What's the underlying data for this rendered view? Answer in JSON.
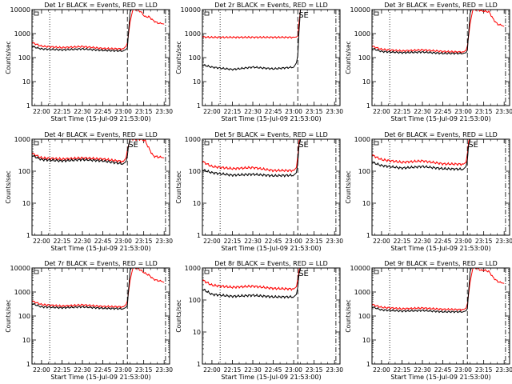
{
  "colors": {
    "events": "#000000",
    "lld": "#ff0000",
    "axes": "#000000",
    "background": "#ffffff"
  },
  "shared": {
    "xlabel": "Start Time (15-Jul-09 21:53:00)",
    "ylabel": "Counts/sec",
    "x_tick_labels": [
      "22:00",
      "22:15",
      "22:30",
      "22:45",
      "23:00",
      "23:15",
      "23:30"
    ],
    "y_tick_labels": [
      "1",
      "10",
      "100",
      "1000",
      "10000"
    ],
    "se_label": "SE",
    "y_scale": "log"
  },
  "chart_data": [
    {
      "type": "line",
      "title": "Det 1r BLACK = Events, RED = LLD",
      "xlabel": "Start Time (15-Jul-09 21:53:00)",
      "ylabel": "Counts/sec",
      "xlim": [
        "21:53",
        "23:34"
      ],
      "ylim": [
        1,
        10000
      ],
      "y_scale": "log",
      "x_tick_labels": [
        "22:00",
        "22:15",
        "22:30",
        "22:45",
        "23:00",
        "23:15",
        "23:30"
      ],
      "y_tick_labels": [
        "1",
        "10",
        "100",
        "1000",
        "10000"
      ],
      "vlines": [
        {
          "time": "22:06",
          "style": "dotted"
        },
        {
          "time": "23:03",
          "style": "dashed"
        },
        {
          "time": "23:31",
          "style": "dashdot"
        }
      ],
      "series": [
        {
          "x": [
            "21:53",
            "22:00",
            "22:15",
            "22:30",
            "22:45",
            "23:00",
            "23:02",
            "23:03",
            "23:04",
            "23:05",
            "23:06",
            "23:07"
          ],
          "y": [
            290,
            230,
            210,
            230,
            200,
            190,
            220,
            250,
            1500,
            8000,
            10000,
            10000
          ]
        },
        {
          "x": [
            "21:53",
            "22:00",
            "22:15",
            "22:30",
            "22:45",
            "23:00",
            "23:02",
            "23:03",
            "23:05",
            "23:07",
            "23:10",
            "23:13",
            "23:16",
            "23:19",
            "23:22",
            "23:25",
            "23:28",
            "23:30"
          ],
          "y": [
            420,
            300,
            260,
            290,
            240,
            230,
            300,
            400,
            3000,
            10000,
            10000,
            8000,
            5000,
            5000,
            3500,
            2800,
            2600,
            2500
          ]
        }
      ]
    },
    {
      "type": "line",
      "title": "Det 2r BLACK = Events, RED = LLD",
      "xlabel": "Start Time (15-Jul-09 21:53:00)",
      "ylabel": "Counts/sec",
      "xlim": [
        "21:53",
        "23:34"
      ],
      "ylim": [
        1,
        10000
      ],
      "y_scale": "log",
      "x_tick_labels": [
        "22:00",
        "22:15",
        "22:30",
        "22:45",
        "23:00",
        "23:15",
        "23:30"
      ],
      "y_tick_labels": [
        "1",
        "10",
        "100",
        "1000",
        "10000"
      ],
      "se_label": "SE",
      "vlines": [
        {
          "time": "22:06",
          "style": "dotted"
        },
        {
          "time": "23:03",
          "style": "dashed"
        },
        {
          "time": "23:31",
          "style": "dashdot"
        }
      ],
      "series": [
        {
          "x": [
            "21:53",
            "22:00",
            "22:15",
            "22:30",
            "22:45",
            "23:00",
            "23:02",
            "23:03",
            "23:04",
            "23:05"
          ],
          "y": [
            50,
            40,
            32,
            40,
            34,
            40,
            60,
            120,
            1500,
            10000
          ]
        },
        {
          "x": [
            "21:53",
            "22:00",
            "22:15",
            "22:30",
            "22:45",
            "23:00",
            "23:02",
            "23:03",
            "23:04",
            "23:05"
          ],
          "y": [
            720,
            700,
            700,
            700,
            700,
            700,
            720,
            800,
            3000,
            10000
          ]
        }
      ]
    },
    {
      "type": "line",
      "title": "Det 3r BLACK = Events, RED = LLD",
      "xlabel": "Start Time (15-Jul-09 21:53:00)",
      "ylabel": "Counts/sec",
      "xlim": [
        "21:53",
        "23:34"
      ],
      "ylim": [
        1,
        10000
      ],
      "y_scale": "log",
      "x_tick_labels": [
        "22:00",
        "22:15",
        "22:30",
        "22:45",
        "23:00",
        "23:15",
        "23:30"
      ],
      "y_tick_labels": [
        "1",
        "10",
        "100",
        "1000",
        "10000"
      ],
      "vlines": [
        {
          "time": "22:06",
          "style": "dotted"
        },
        {
          "time": "23:03",
          "style": "dashed"
        },
        {
          "time": "23:31",
          "style": "dashdot"
        }
      ],
      "series": [
        {
          "x": [
            "21:53",
            "22:00",
            "22:15",
            "22:30",
            "22:45",
            "23:00",
            "23:02",
            "23:03",
            "23:04",
            "23:05",
            "23:06",
            "23:07"
          ],
          "y": [
            240,
            180,
            160,
            170,
            150,
            150,
            160,
            200,
            1200,
            7000,
            10000,
            10000
          ]
        },
        {
          "x": [
            "21:53",
            "22:00",
            "22:15",
            "22:30",
            "22:45",
            "23:00",
            "23:02",
            "23:03",
            "23:05",
            "23:07",
            "23:10",
            "23:13",
            "23:16",
            "23:19",
            "23:22",
            "23:25",
            "23:28",
            "23:30"
          ],
          "y": [
            300,
            220,
            190,
            210,
            180,
            170,
            200,
            300,
            2500,
            10000,
            10000,
            9000,
            8500,
            8000,
            4000,
            2500,
            2200,
            2000
          ]
        }
      ]
    },
    {
      "type": "line",
      "title": "Det 4r BLACK = Events, RED = LLD",
      "xlabel": "Start Time (15-Jul-09 21:53:00)",
      "ylabel": "Counts/sec",
      "xlim": [
        "21:53",
        "23:34"
      ],
      "ylim": [
        1,
        1000
      ],
      "y_scale": "log",
      "x_tick_labels": [
        "22:00",
        "22:15",
        "22:30",
        "22:45",
        "23:00",
        "23:15",
        "23:30"
      ],
      "y_tick_labels": [
        "1",
        "10",
        "100",
        "1000"
      ],
      "se_label": "SE",
      "vlines": [
        {
          "time": "22:06",
          "style": "dotted"
        },
        {
          "time": "23:03",
          "style": "dashed"
        },
        {
          "time": "23:31",
          "style": "dashdot"
        }
      ],
      "series": [
        {
          "x": [
            "21:53",
            "22:00",
            "22:15",
            "22:30",
            "22:45",
            "23:00",
            "23:02",
            "23:03",
            "23:04",
            "23:05",
            "23:06"
          ],
          "y": [
            310,
            230,
            210,
            230,
            210,
            170,
            200,
            300,
            700,
            1000,
            1000
          ]
        },
        {
          "x": [
            "21:53",
            "22:00",
            "22:15",
            "22:30",
            "22:45",
            "23:00",
            "23:02",
            "23:03",
            "23:05",
            "23:07",
            "23:10",
            "23:13",
            "23:16",
            "23:19",
            "23:22",
            "23:25",
            "23:28",
            "23:30"
          ],
          "y": [
            360,
            260,
            240,
            260,
            240,
            200,
            260,
            450,
            1000,
            1000,
            1000,
            1000,
            900,
            500,
            300,
            280,
            270,
            260
          ]
        }
      ]
    },
    {
      "type": "line",
      "title": "Det 5r BLACK = Events, RED = LLD",
      "xlabel": "Start Time (15-Jul-09 21:53:00)",
      "ylabel": "Counts/sec",
      "xlim": [
        "21:53",
        "23:34"
      ],
      "ylim": [
        1,
        1000
      ],
      "y_scale": "log",
      "x_tick_labels": [
        "22:00",
        "22:15",
        "22:30",
        "22:45",
        "23:00",
        "23:15",
        "23:30"
      ],
      "y_tick_labels": [
        "1",
        "10",
        "100",
        "1000"
      ],
      "se_label": "SE",
      "vlines": [
        {
          "time": "22:06",
          "style": "dotted"
        },
        {
          "time": "23:03",
          "style": "dashed"
        },
        {
          "time": "23:31",
          "style": "dashdot"
        }
      ],
      "series": [
        {
          "x": [
            "21:53",
            "22:00",
            "22:15",
            "22:30",
            "22:45",
            "23:00",
            "23:02",
            "23:03",
            "23:04",
            "23:05"
          ],
          "y": [
            110,
            90,
            75,
            80,
            72,
            75,
            90,
            180,
            700,
            1000
          ]
        },
        {
          "x": [
            "21:53",
            "22:00",
            "22:15",
            "22:30",
            "22:45",
            "23:00",
            "23:02",
            "23:03",
            "23:04",
            "23:05"
          ],
          "y": [
            200,
            140,
            120,
            130,
            105,
            105,
            130,
            300,
            900,
            1000
          ]
        }
      ]
    },
    {
      "type": "line",
      "title": "Det 6r BLACK = Events, RED = LLD",
      "xlabel": "Start Time (15-Jul-09 21:53:00)",
      "ylabel": "Counts/sec",
      "xlim": [
        "21:53",
        "23:34"
      ],
      "ylim": [
        1,
        1000
      ],
      "y_scale": "log",
      "x_tick_labels": [
        "22:00",
        "22:15",
        "22:30",
        "22:45",
        "23:00",
        "23:15",
        "23:30"
      ],
      "y_tick_labels": [
        "1",
        "10",
        "100",
        "1000"
      ],
      "se_label": "SE",
      "vlines": [
        {
          "time": "22:06",
          "style": "dotted"
        },
        {
          "time": "23:03",
          "style": "dashed"
        },
        {
          "time": "23:31",
          "style": "dashdot"
        }
      ],
      "series": [
        {
          "x": [
            "21:53",
            "22:00",
            "22:15",
            "22:30",
            "22:45",
            "23:00",
            "23:02",
            "23:03",
            "23:04",
            "23:05"
          ],
          "y": [
            190,
            150,
            125,
            140,
            120,
            115,
            140,
            220,
            700,
            1000
          ]
        },
        {
          "x": [
            "21:53",
            "22:00",
            "22:15",
            "22:30",
            "22:45",
            "23:00",
            "23:02",
            "23:03",
            "23:04",
            "23:05"
          ],
          "y": [
            320,
            230,
            190,
            210,
            170,
            165,
            190,
            350,
            900,
            1000
          ]
        }
      ]
    },
    {
      "type": "line",
      "title": "Det 7r BLACK = Events, RED = LLD",
      "xlabel": "Start Time (15-Jul-09 21:53:00)",
      "ylabel": "Counts/sec",
      "xlim": [
        "21:53",
        "23:34"
      ],
      "ylim": [
        1,
        10000
      ],
      "y_scale": "log",
      "x_tick_labels": [
        "22:00",
        "22:15",
        "22:30",
        "22:45",
        "23:00",
        "23:15",
        "23:30"
      ],
      "y_tick_labels": [
        "1",
        "10",
        "100",
        "1000",
        "10000"
      ],
      "vlines": [
        {
          "time": "22:06",
          "style": "dotted"
        },
        {
          "time": "23:03",
          "style": "dashed"
        },
        {
          "time": "23:31",
          "style": "dashdot"
        }
      ],
      "series": [
        {
          "x": [
            "21:53",
            "22:00",
            "22:15",
            "22:30",
            "22:45",
            "23:00",
            "23:02",
            "23:03",
            "23:04",
            "23:05",
            "23:06",
            "23:07"
          ],
          "y": [
            330,
            240,
            220,
            240,
            210,
            200,
            230,
            280,
            1500,
            8000,
            10000,
            10000
          ]
        },
        {
          "x": [
            "21:53",
            "22:00",
            "22:15",
            "22:30",
            "22:45",
            "23:00",
            "23:02",
            "23:03",
            "23:05",
            "23:07",
            "23:10",
            "23:13",
            "23:16",
            "23:19",
            "23:22",
            "23:25",
            "23:28",
            "23:30"
          ],
          "y": [
            420,
            300,
            260,
            290,
            250,
            240,
            300,
            420,
            3000,
            10000,
            10000,
            8000,
            6000,
            5000,
            3500,
            3000,
            2800,
            2500
          ]
        }
      ]
    },
    {
      "type": "line",
      "title": "Det 8r BLACK = Events, RED = LLD",
      "xlabel": "Start Time (15-Jul-09 21:53:00)",
      "ylabel": "Counts/sec",
      "xlim": [
        "21:53",
        "23:34"
      ],
      "ylim": [
        1,
        1000
      ],
      "y_scale": "log",
      "x_tick_labels": [
        "22:00",
        "22:15",
        "22:30",
        "22:45",
        "23:00",
        "23:15",
        "23:30"
      ],
      "y_tick_labels": [
        "1",
        "10",
        "100",
        "1000"
      ],
      "se_label": "SE",
      "vlines": [
        {
          "time": "22:06",
          "style": "dotted"
        },
        {
          "time": "23:03",
          "style": "dashed"
        },
        {
          "time": "23:31",
          "style": "dashdot"
        }
      ],
      "series": [
        {
          "x": [
            "21:53",
            "22:00",
            "22:15",
            "22:30",
            "22:45",
            "23:00",
            "23:02",
            "23:03",
            "23:04",
            "23:05"
          ],
          "y": [
            220,
            150,
            130,
            140,
            125,
            125,
            150,
            250,
            700,
            1000
          ]
        },
        {
          "x": [
            "21:53",
            "22:00",
            "22:15",
            "22:30",
            "22:45",
            "23:00",
            "23:02",
            "23:03",
            "23:04",
            "23:05"
          ],
          "y": [
            420,
            290,
            250,
            270,
            230,
            220,
            260,
            450,
            900,
            1000
          ]
        }
      ]
    },
    {
      "type": "line",
      "title": "Det 9r BLACK = Events, RED = LLD",
      "xlabel": "Start Time (15-Jul-09 21:53:00)",
      "ylabel": "Counts/sec",
      "xlim": [
        "21:53",
        "23:34"
      ],
      "ylim": [
        1,
        10000
      ],
      "y_scale": "log",
      "x_tick_labels": [
        "22:00",
        "22:15",
        "22:30",
        "22:45",
        "23:00",
        "23:15",
        "23:30"
      ],
      "y_tick_labels": [
        "1",
        "10",
        "100",
        "1000",
        "10000"
      ],
      "vlines": [
        {
          "time": "22:06",
          "style": "dotted"
        },
        {
          "time": "23:03",
          "style": "dashed"
        },
        {
          "time": "23:31",
          "style": "dashdot"
        }
      ],
      "series": [
        {
          "x": [
            "21:53",
            "22:00",
            "22:15",
            "22:30",
            "22:45",
            "23:00",
            "23:02",
            "23:03",
            "23:04",
            "23:05",
            "23:06",
            "23:07"
          ],
          "y": [
            240,
            180,
            160,
            170,
            150,
            150,
            165,
            200,
            1200,
            7000,
            10000,
            10000
          ]
        },
        {
          "x": [
            "21:53",
            "22:00",
            "22:15",
            "22:30",
            "22:45",
            "23:00",
            "23:02",
            "23:03",
            "23:05",
            "23:07",
            "23:10",
            "23:13",
            "23:16",
            "23:19",
            "23:22",
            "23:25",
            "23:28",
            "23:30"
          ],
          "y": [
            300,
            230,
            200,
            215,
            190,
            185,
            210,
            320,
            2500,
            10000,
            10000,
            8000,
            8000,
            7000,
            4000,
            2800,
            2400,
            2300
          ]
        }
      ]
    }
  ]
}
